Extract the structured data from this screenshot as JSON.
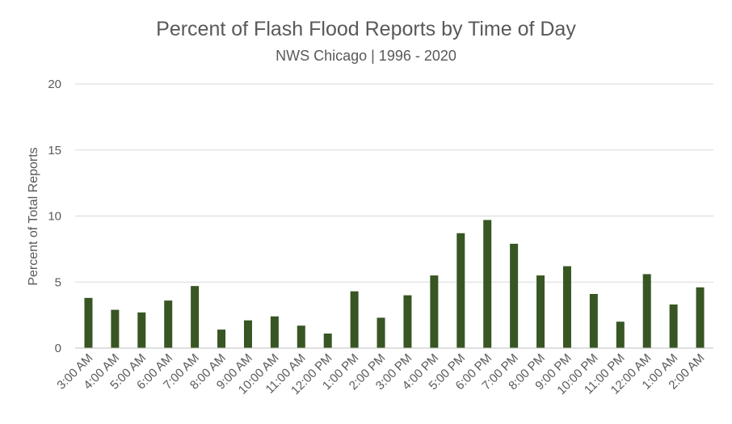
{
  "chart_data": {
    "type": "bar",
    "title": "Percent of Flash Flood Reports by Time of Day",
    "subtitle": "NWS Chicago | 1996 - 2020",
    "xlabel": "",
    "ylabel": "Percent of Total Reports",
    "ylim": [
      0,
      20
    ],
    "yticks": [
      0,
      5,
      10,
      15,
      20
    ],
    "grid": true,
    "legend": "none",
    "bar_color": "#375623",
    "categories": [
      "3:00 AM",
      "4:00 AM",
      "5:00 AM",
      "6:00 AM",
      "7:00 AM",
      "8:00 AM",
      "9:00 AM",
      "10:00 AM",
      "11:00 AM",
      "12:00 PM",
      "1:00 PM",
      "2:00 PM",
      "3:00 PM",
      "4:00 PM",
      "5:00 PM",
      "6:00 PM",
      "7:00 PM",
      "8:00 PM",
      "9:00 PM",
      "10:00 PM",
      "11:00 PM",
      "12:00 AM",
      "1:00 AM",
      "2:00 AM"
    ],
    "values": [
      3.8,
      2.9,
      2.7,
      3.6,
      4.7,
      1.4,
      2.1,
      2.4,
      1.7,
      1.1,
      4.3,
      2.3,
      4.0,
      5.5,
      8.7,
      9.7,
      7.9,
      5.5,
      6.2,
      4.1,
      2.0,
      5.6,
      3.3,
      4.6
    ]
  }
}
